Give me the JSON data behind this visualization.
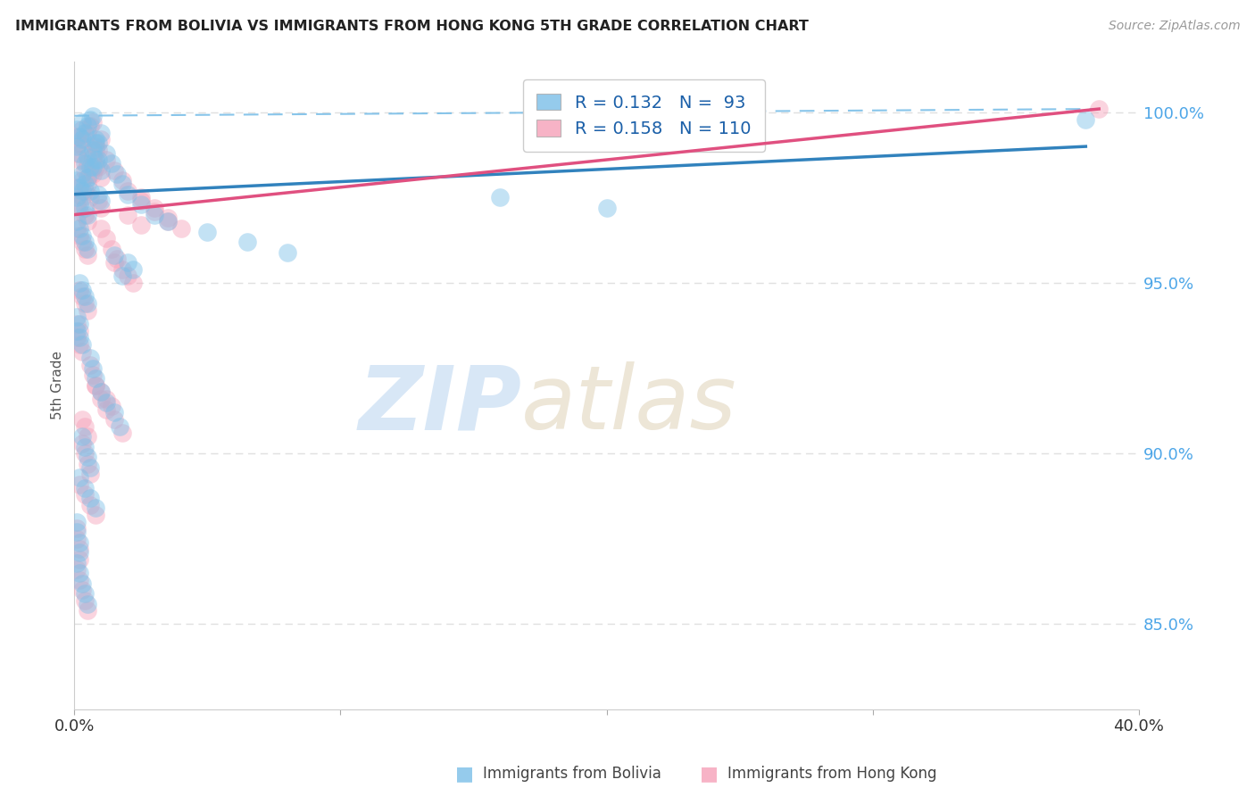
{
  "title": "IMMIGRANTS FROM BOLIVIA VS IMMIGRANTS FROM HONG KONG 5TH GRADE CORRELATION CHART",
  "source": "Source: ZipAtlas.com",
  "ylabel": "5th Grade",
  "yticks": [
    0.85,
    0.9,
    0.95,
    1.0
  ],
  "ytick_labels": [
    "85.0%",
    "90.0%",
    "95.0%",
    "100.0%"
  ],
  "xmin": 0.0,
  "xmax": 0.4,
  "ymin": 0.825,
  "ymax": 1.015,
  "bolivia_color": "#7bbfe8",
  "hong_kong_color": "#f5a0b8",
  "bolivia_R": 0.132,
  "bolivia_N": 93,
  "hong_kong_R": 0.158,
  "hong_kong_N": 110,
  "watermark_zip": "ZIP",
  "watermark_atlas": "atlas",
  "bolivia_trend": [
    0.0,
    0.38,
    0.976,
    0.99
  ],
  "hong_kong_trend": [
    0.0,
    0.385,
    0.97,
    1.001
  ],
  "bolivia_dashed": [
    0.0,
    0.385,
    0.999,
    1.001
  ],
  "grid_color": "#e0e0e0",
  "background_color": "#ffffff",
  "bolivia_scatter_x": [
    0.001,
    0.002,
    0.003,
    0.004,
    0.005,
    0.006,
    0.007,
    0.008,
    0.009,
    0.01,
    0.001,
    0.002,
    0.003,
    0.004,
    0.005,
    0.006,
    0.007,
    0.008,
    0.009,
    0.01,
    0.001,
    0.002,
    0.003,
    0.004,
    0.005,
    0.006,
    0.007,
    0.008,
    0.009,
    0.01,
    0.001,
    0.002,
    0.003,
    0.004,
    0.005,
    0.001,
    0.002,
    0.003,
    0.004,
    0.005,
    0.012,
    0.014,
    0.016,
    0.018,
    0.02,
    0.025,
    0.03,
    0.015,
    0.02,
    0.022,
    0.018,
    0.035,
    0.05,
    0.065,
    0.08,
    0.002,
    0.003,
    0.004,
    0.005,
    0.001,
    0.002,
    0.001,
    0.002,
    0.003,
    0.006,
    0.007,
    0.008,
    0.01,
    0.012,
    0.015,
    0.017,
    0.003,
    0.004,
    0.005,
    0.006,
    0.002,
    0.004,
    0.006,
    0.008,
    0.001,
    0.001,
    0.002,
    0.002,
    0.001,
    0.002,
    0.003,
    0.004,
    0.005,
    0.38,
    0.16,
    0.2
  ],
  "bolivia_scatter_y": [
    0.99,
    0.988,
    0.992,
    0.985,
    0.987,
    0.984,
    0.989,
    0.991,
    0.986,
    0.983,
    0.995,
    0.993,
    0.997,
    0.994,
    0.996,
    0.998,
    0.999,
    0.992,
    0.991,
    0.994,
    0.98,
    0.978,
    0.982,
    0.979,
    0.981,
    0.977,
    0.984,
    0.986,
    0.976,
    0.974,
    0.975,
    0.973,
    0.977,
    0.972,
    0.97,
    0.968,
    0.966,
    0.964,
    0.962,
    0.96,
    0.988,
    0.985,
    0.982,
    0.979,
    0.976,
    0.973,
    0.97,
    0.958,
    0.956,
    0.954,
    0.952,
    0.968,
    0.965,
    0.962,
    0.959,
    0.95,
    0.948,
    0.946,
    0.944,
    0.94,
    0.938,
    0.936,
    0.934,
    0.932,
    0.928,
    0.925,
    0.922,
    0.918,
    0.915,
    0.912,
    0.908,
    0.905,
    0.902,
    0.899,
    0.896,
    0.893,
    0.89,
    0.887,
    0.884,
    0.88,
    0.877,
    0.874,
    0.871,
    0.868,
    0.865,
    0.862,
    0.859,
    0.856,
    0.998,
    0.975,
    0.972
  ],
  "hong_kong_scatter_x": [
    0.001,
    0.002,
    0.003,
    0.004,
    0.005,
    0.006,
    0.007,
    0.008,
    0.009,
    0.01,
    0.001,
    0.002,
    0.003,
    0.004,
    0.005,
    0.006,
    0.007,
    0.008,
    0.009,
    0.01,
    0.001,
    0.002,
    0.003,
    0.004,
    0.005,
    0.006,
    0.007,
    0.008,
    0.009,
    0.01,
    0.001,
    0.002,
    0.003,
    0.004,
    0.005,
    0.001,
    0.002,
    0.003,
    0.004,
    0.005,
    0.012,
    0.015,
    0.018,
    0.02,
    0.025,
    0.03,
    0.035,
    0.015,
    0.018,
    0.02,
    0.022,
    0.01,
    0.012,
    0.014,
    0.016,
    0.002,
    0.003,
    0.004,
    0.005,
    0.001,
    0.002,
    0.001,
    0.002,
    0.003,
    0.006,
    0.007,
    0.008,
    0.01,
    0.012,
    0.015,
    0.018,
    0.003,
    0.004,
    0.005,
    0.006,
    0.002,
    0.004,
    0.006,
    0.008,
    0.001,
    0.001,
    0.002,
    0.002,
    0.001,
    0.002,
    0.003,
    0.004,
    0.005,
    0.025,
    0.03,
    0.035,
    0.04,
    0.008,
    0.01,
    0.012,
    0.014,
    0.003,
    0.004,
    0.005,
    0.385,
    0.02,
    0.025
  ],
  "hong_kong_scatter_y": [
    0.988,
    0.986,
    0.99,
    0.983,
    0.985,
    0.982,
    0.987,
    0.989,
    0.984,
    0.981,
    0.993,
    0.991,
    0.995,
    0.992,
    0.994,
    0.996,
    0.997,
    0.99,
    0.989,
    0.992,
    0.978,
    0.976,
    0.98,
    0.977,
    0.979,
    0.975,
    0.982,
    0.984,
    0.974,
    0.972,
    0.973,
    0.971,
    0.975,
    0.97,
    0.968,
    0.966,
    0.964,
    0.962,
    0.96,
    0.958,
    0.986,
    0.983,
    0.98,
    0.977,
    0.974,
    0.971,
    0.968,
    0.956,
    0.954,
    0.952,
    0.95,
    0.966,
    0.963,
    0.96,
    0.957,
    0.948,
    0.946,
    0.944,
    0.942,
    0.938,
    0.936,
    0.934,
    0.932,
    0.93,
    0.926,
    0.923,
    0.92,
    0.916,
    0.913,
    0.91,
    0.906,
    0.903,
    0.9,
    0.897,
    0.894,
    0.891,
    0.888,
    0.885,
    0.882,
    0.878,
    0.875,
    0.872,
    0.869,
    0.866,
    0.863,
    0.86,
    0.857,
    0.854,
    0.975,
    0.972,
    0.969,
    0.966,
    0.92,
    0.918,
    0.916,
    0.914,
    0.91,
    0.908,
    0.905,
    1.001,
    0.97,
    0.967
  ]
}
